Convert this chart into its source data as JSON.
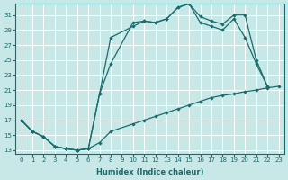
{
  "xlabel": "Humidex (Indice chaleur)",
  "background_color": "#c8e8e8",
  "line_color": "#1a6b6b",
  "grid_color": "#ffffff",
  "xlim": [
    -0.5,
    23.5
  ],
  "ylim": [
    12.5,
    32.5
  ],
  "yticks": [
    13,
    15,
    17,
    19,
    21,
    23,
    25,
    27,
    29,
    31
  ],
  "xticks": [
    0,
    1,
    2,
    3,
    4,
    5,
    6,
    7,
    8,
    9,
    10,
    11,
    12,
    13,
    14,
    15,
    16,
    17,
    18,
    19,
    20,
    21,
    22,
    23
  ],
  "line1": {
    "x": [
      0,
      1,
      2,
      3,
      4,
      5,
      6,
      7,
      8,
      10,
      11,
      12,
      13,
      14,
      15,
      16,
      17,
      18,
      19,
      20,
      21,
      22,
      23
    ],
    "y": [
      17.0,
      15.5,
      14.8,
      13.5,
      13.2,
      13.0,
      13.2,
      14.0,
      15.5,
      16.5,
      17.0,
      17.5,
      18.0,
      18.5,
      19.0,
      19.5,
      20.0,
      20.3,
      20.5,
      20.8,
      21.0,
      21.3,
      21.5
    ]
  },
  "line2": {
    "x": [
      0,
      1,
      2,
      3,
      4,
      5,
      6,
      7,
      8,
      10,
      11,
      12,
      13,
      14,
      15,
      16,
      17,
      18,
      19,
      20,
      21,
      22
    ],
    "y": [
      17.0,
      15.5,
      14.8,
      13.5,
      13.2,
      13.0,
      13.2,
      20.5,
      28.0,
      29.5,
      30.2,
      30.0,
      30.5,
      32.0,
      32.5,
      30.8,
      30.2,
      29.8,
      31.0,
      31.0,
      25.0,
      21.5
    ]
  },
  "line3": {
    "x": [
      0,
      1,
      2,
      3,
      4,
      5,
      6,
      7,
      8,
      10,
      11,
      12,
      13,
      14,
      15,
      16,
      17,
      18,
      19,
      20,
      21,
      22
    ],
    "y": [
      17.0,
      15.5,
      14.8,
      13.5,
      13.2,
      13.0,
      13.2,
      20.5,
      24.5,
      30.0,
      30.2,
      30.0,
      30.5,
      32.0,
      32.5,
      30.0,
      29.5,
      29.0,
      30.5,
      28.0,
      24.5,
      21.5
    ]
  }
}
